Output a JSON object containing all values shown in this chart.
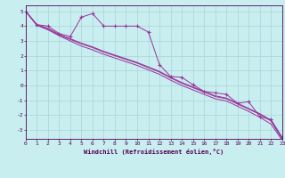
{
  "xlabel": "Windchill (Refroidissement éolien,°C)",
  "bg_color": "#c8eef0",
  "grid_color": "#aad4d8",
  "line_color": "#993399",
  "xlim": [
    0,
    23
  ],
  "ylim": [
    -3.6,
    5.4
  ],
  "yticks": [
    -3,
    -2,
    -1,
    0,
    1,
    2,
    3,
    4,
    5
  ],
  "xticks": [
    0,
    1,
    2,
    3,
    4,
    5,
    6,
    7,
    8,
    9,
    10,
    11,
    12,
    13,
    14,
    15,
    16,
    17,
    18,
    19,
    20,
    21,
    22,
    23
  ],
  "line1_x": [
    0,
    1,
    2,
    3,
    4,
    5,
    6,
    7,
    8,
    9,
    10,
    11,
    12,
    13,
    14,
    15,
    16,
    17,
    18,
    19,
    20,
    21,
    22,
    23
  ],
  "line1_y": [
    5.0,
    4.1,
    4.0,
    3.5,
    3.3,
    4.6,
    4.85,
    4.0,
    4.0,
    4.0,
    4.0,
    3.6,
    1.4,
    0.6,
    0.55,
    0.05,
    -0.4,
    -0.5,
    -0.6,
    -1.2,
    -1.1,
    -2.1,
    -2.3,
    -3.5
  ],
  "line2_x": [
    0,
    1,
    2,
    3,
    4,
    5,
    6,
    7,
    8,
    9,
    10,
    11,
    12,
    13,
    14,
    15,
    16,
    17,
    18,
    19,
    20,
    21,
    22,
    23
  ],
  "line2_y": [
    5.0,
    4.1,
    3.85,
    3.45,
    3.15,
    2.85,
    2.6,
    2.3,
    2.05,
    1.8,
    1.55,
    1.25,
    0.95,
    0.55,
    0.2,
    -0.1,
    -0.4,
    -0.7,
    -0.85,
    -1.2,
    -1.55,
    -1.9,
    -2.35,
    -3.55
  ],
  "line3_x": [
    0,
    1,
    2,
    3,
    4,
    5,
    6,
    7,
    8,
    9,
    10,
    11,
    12,
    13,
    14,
    15,
    16,
    17,
    18,
    19,
    20,
    21,
    22,
    23
  ],
  "line3_y": [
    5.0,
    4.1,
    3.8,
    3.4,
    3.1,
    2.8,
    2.55,
    2.25,
    2.0,
    1.75,
    1.5,
    1.2,
    0.9,
    0.5,
    0.15,
    -0.15,
    -0.45,
    -0.75,
    -0.9,
    -1.25,
    -1.6,
    -1.95,
    -2.4,
    -3.6
  ],
  "line4_x": [
    0,
    1,
    2,
    3,
    4,
    5,
    6,
    7,
    8,
    9,
    10,
    11,
    12,
    13,
    14,
    15,
    16,
    17,
    18,
    19,
    20,
    21,
    22,
    23
  ],
  "line4_y": [
    5.0,
    4.05,
    3.75,
    3.35,
    3.0,
    2.65,
    2.4,
    2.1,
    1.85,
    1.6,
    1.35,
    1.05,
    0.75,
    0.35,
    0.0,
    -0.3,
    -0.6,
    -0.9,
    -1.05,
    -1.4,
    -1.75,
    -2.15,
    -2.6,
    -3.7
  ]
}
